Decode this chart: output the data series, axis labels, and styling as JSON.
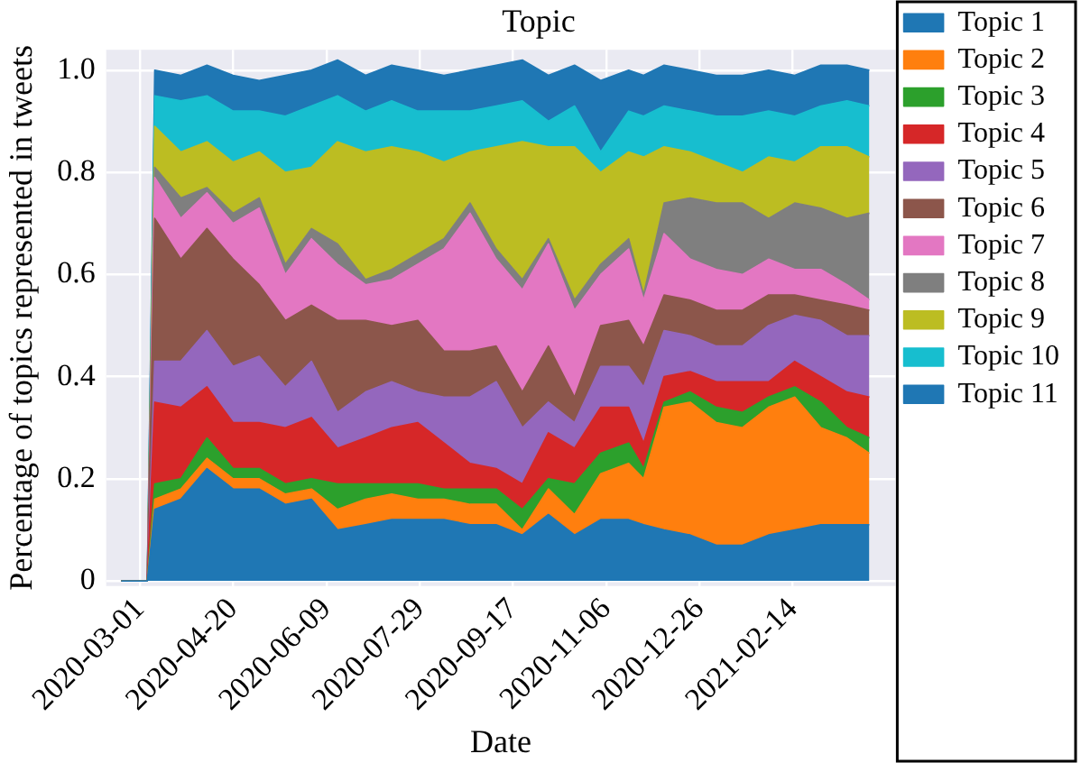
{
  "chart_data": {
    "type": "area",
    "stacked": true,
    "title": "Topic",
    "xlabel": "Date",
    "ylabel": "Percentage of topics represented in tweets",
    "x": [
      "2020-02-20",
      "2020-03-05",
      "2020-03-09",
      "2020-03-23",
      "2020-04-06",
      "2020-04-20",
      "2020-05-04",
      "2020-05-18",
      "2020-06-01",
      "2020-06-15",
      "2020-06-30",
      "2020-07-14",
      "2020-07-28",
      "2020-08-11",
      "2020-08-25",
      "2020-09-08",
      "2020-09-22",
      "2020-10-06",
      "2020-10-20",
      "2020-11-03",
      "2020-11-18",
      "2020-11-26",
      "2020-12-07",
      "2020-12-21",
      "2021-01-04",
      "2021-01-18",
      "2021-02-01",
      "2021-02-15",
      "2021-03-01",
      "2021-03-15",
      "2021-03-27"
    ],
    "series": [
      {
        "name": "Topic 1",
        "color": "#1f77b4",
        "values": [
          0,
          0,
          0.14,
          0.16,
          0.22,
          0.18,
          0.18,
          0.15,
          0.16,
          0.1,
          0.11,
          0.12,
          0.12,
          0.12,
          0.11,
          0.11,
          0.09,
          0.13,
          0.09,
          0.12,
          0.12,
          0.11,
          0.1,
          0.09,
          0.07,
          0.07,
          0.09,
          0.1,
          0.11,
          0.11,
          0.11
        ]
      },
      {
        "name": "Topic 2",
        "color": "#ff7f0e",
        "values": [
          0,
          0,
          0.02,
          0.02,
          0.02,
          0.02,
          0.02,
          0.02,
          0.02,
          0.04,
          0.05,
          0.05,
          0.04,
          0.04,
          0.04,
          0.04,
          0.01,
          0.05,
          0.04,
          0.09,
          0.11,
          0.09,
          0.24,
          0.26,
          0.24,
          0.23,
          0.25,
          0.26,
          0.19,
          0.17,
          0.14
        ]
      },
      {
        "name": "Topic 3",
        "color": "#2ca02c",
        "values": [
          0,
          0,
          0.03,
          0.02,
          0.04,
          0.02,
          0.02,
          0.02,
          0.02,
          0.05,
          0.03,
          0.02,
          0.03,
          0.02,
          0.03,
          0.03,
          0.04,
          0.02,
          0.06,
          0.04,
          0.04,
          0.02,
          0.01,
          0.02,
          0.03,
          0.03,
          0.02,
          0.02,
          0.05,
          0.02,
          0.03
        ]
      },
      {
        "name": "Topic 4",
        "color": "#d62728",
        "values": [
          0,
          0,
          0.16,
          0.14,
          0.1,
          0.09,
          0.09,
          0.11,
          0.12,
          0.07,
          0.09,
          0.11,
          0.12,
          0.09,
          0.05,
          0.04,
          0.05,
          0.09,
          0.07,
          0.09,
          0.07,
          0.05,
          0.05,
          0.04,
          0.05,
          0.06,
          0.03,
          0.05,
          0.05,
          0.07,
          0.08
        ]
      },
      {
        "name": "Topic 5",
        "color": "#9467bd",
        "values": [
          0,
          0,
          0.08,
          0.09,
          0.11,
          0.11,
          0.13,
          0.08,
          0.11,
          0.07,
          0.09,
          0.09,
          0.06,
          0.09,
          0.13,
          0.17,
          0.11,
          0.06,
          0.05,
          0.08,
          0.08,
          0.11,
          0.09,
          0.07,
          0.07,
          0.07,
          0.11,
          0.09,
          0.11,
          0.11,
          0.12
        ]
      },
      {
        "name": "Topic 6",
        "color": "#8c564b",
        "values": [
          0,
          0,
          0.28,
          0.2,
          0.2,
          0.21,
          0.14,
          0.13,
          0.11,
          0.18,
          0.14,
          0.11,
          0.14,
          0.09,
          0.09,
          0.07,
          0.07,
          0.11,
          0.05,
          0.08,
          0.09,
          0.08,
          0.07,
          0.07,
          0.07,
          0.07,
          0.06,
          0.04,
          0.04,
          0.06,
          0.05
        ]
      },
      {
        "name": "Topic 7",
        "color": "#e377c2",
        "values": [
          0,
          0,
          0.08,
          0.08,
          0.07,
          0.07,
          0.15,
          0.09,
          0.13,
          0.11,
          0.07,
          0.09,
          0.11,
          0.2,
          0.27,
          0.17,
          0.2,
          0.2,
          0.17,
          0.1,
          0.14,
          0.09,
          0.12,
          0.08,
          0.08,
          0.07,
          0.07,
          0.05,
          0.06,
          0.04,
          0.02
        ]
      },
      {
        "name": "Topic 8",
        "color": "#7f7f7f",
        "values": [
          0,
          0,
          0.02,
          0.04,
          0.01,
          0.02,
          0.02,
          0.02,
          0.02,
          0.04,
          0.01,
          0.02,
          0.02,
          0.02,
          0.02,
          0.02,
          0.02,
          0.01,
          0.02,
          0.02,
          0.02,
          0.01,
          0.06,
          0.12,
          0.13,
          0.14,
          0.08,
          0.13,
          0.12,
          0.13,
          0.17
        ]
      },
      {
        "name": "Topic 9",
        "color": "#bcbd22",
        "values": [
          0,
          0,
          0.08,
          0.09,
          0.09,
          0.1,
          0.09,
          0.18,
          0.12,
          0.2,
          0.25,
          0.24,
          0.2,
          0.15,
          0.1,
          0.2,
          0.27,
          0.18,
          0.3,
          0.18,
          0.17,
          0.27,
          0.11,
          0.09,
          0.08,
          0.06,
          0.12,
          0.08,
          0.12,
          0.14,
          0.11
        ]
      },
      {
        "name": "Topic 10",
        "color": "#17becf",
        "values": [
          0,
          0,
          0.06,
          0.1,
          0.09,
          0.1,
          0.08,
          0.11,
          0.12,
          0.09,
          0.08,
          0.09,
          0.08,
          0.1,
          0.08,
          0.08,
          0.08,
          0.05,
          0.08,
          0.04,
          0.08,
          0.08,
          0.08,
          0.08,
          0.09,
          0.11,
          0.09,
          0.09,
          0.08,
          0.09,
          0.1
        ]
      },
      {
        "name": "Topic 11",
        "color": "#1f77b4",
        "values": [
          0,
          0,
          0.05,
          0.05,
          0.06,
          0.07,
          0.06,
          0.08,
          0.07,
          0.07,
          0.07,
          0.07,
          0.08,
          0.07,
          0.08,
          0.08,
          0.08,
          0.09,
          0.08,
          0.14,
          0.08,
          0.08,
          0.08,
          0.08,
          0.08,
          0.08,
          0.08,
          0.08,
          0.08,
          0.07,
          0.07
        ]
      }
    ],
    "xlim": [
      "2020-02-12",
      "2021-04-10"
    ],
    "xticks": [
      "2020-03-01",
      "2020-04-20",
      "2020-06-09",
      "2020-07-29",
      "2020-09-17",
      "2020-11-06",
      "2020-12-26",
      "2021-02-14"
    ],
    "ylim": [
      -0.01,
      1.04
    ],
    "yticks": [
      0,
      0.2,
      0.4,
      0.6,
      0.8,
      {
        "value": 1,
        "label": "1.0"
      }
    ],
    "grid": true,
    "legend": "right"
  }
}
